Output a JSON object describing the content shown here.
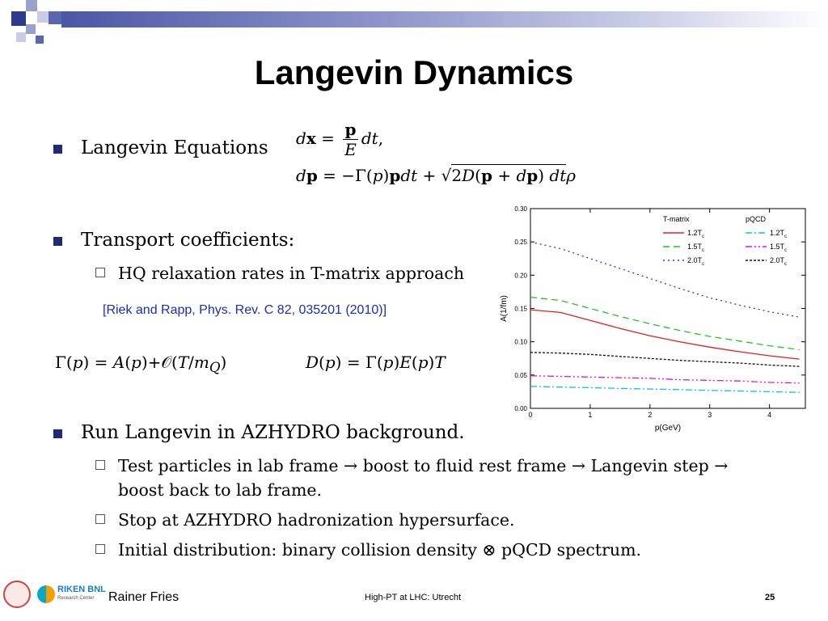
{
  "slide": {
    "title": "Langevin Dynamics",
    "bullets": [
      {
        "text": "Langevin Equations"
      },
      {
        "text": "Transport coefficients:"
      },
      {
        "text": "Run Langevin in AZHYDRO background."
      }
    ],
    "sub_items": [
      "HQ relaxation rates in T-matrix approach",
      "Test particles in lab frame → boost to fluid rest frame → Langevin step →",
      "boost back to lab frame.",
      "Stop at AZHYDRO hadronization hypersurface.",
      "Initial distribution: binary collision density ⊗ pQCD spectrum."
    ],
    "reference": "[Riek and Rapp, Phys. Rev. C 82, 035201 (2010)]",
    "footer": {
      "author": "Rainer Fries",
      "event": "High-PT at LHC: Utrecht",
      "page": "25",
      "logo_text": "RIKEN BNL",
      "logo_subtext": "Research Center"
    }
  },
  "chart_data": {
    "type": "line",
    "xlabel": "p(GeV)",
    "ylabel": "A(1/fm)",
    "xlim": [
      0,
      4.6
    ],
    "ylim": [
      0,
      0.3
    ],
    "xticks": [
      "0",
      "1",
      "2",
      "3",
      "4"
    ],
    "yticks": [
      "0.00",
      "0.05",
      "0.10",
      "0.15",
      "0.20",
      "0.25",
      "0.30"
    ],
    "legend_headers": [
      "T-matrix",
      "pQCD"
    ],
    "legend_placement": "top-right",
    "x": [
      0,
      0.5,
      1,
      1.5,
      2,
      2.5,
      3,
      3.5,
      4,
      4.5
    ],
    "series": [
      {
        "name": "1.2Tc",
        "group": "T-matrix",
        "color": "#e02020",
        "dash": "solid",
        "values": [
          0.148,
          0.144,
          0.132,
          0.12,
          0.109,
          0.1,
          0.092,
          0.085,
          0.079,
          0.074
        ]
      },
      {
        "name": "1.5Tc",
        "group": "T-matrix",
        "color": "#22c422",
        "dash": "8,5",
        "values": [
          0.167,
          0.162,
          0.15,
          0.138,
          0.127,
          0.117,
          0.108,
          0.101,
          0.094,
          0.088
        ]
      },
      {
        "name": "2.0Tc",
        "group": "T-matrix",
        "color": "#3333cc",
        "dash": "2,4",
        "values": [
          0.25,
          0.24,
          0.225,
          0.21,
          0.195,
          0.18,
          0.166,
          0.155,
          0.145,
          0.137
        ]
      },
      {
        "name": "1.2Tc",
        "group": "pQCD",
        "color": "#00cccc",
        "dash": "8,3,2,3",
        "values": [
          0.033,
          0.032,
          0.031,
          0.03,
          0.029,
          0.028,
          0.027,
          0.026,
          0.025,
          0.024
        ]
      },
      {
        "name": "1.5Tc",
        "group": "pQCD",
        "color": "#dd11dd",
        "dash": "8,3,2,3,2,3",
        "values": [
          0.049,
          0.048,
          0.047,
          0.046,
          0.045,
          0.043,
          0.042,
          0.041,
          0.039,
          0.038
        ]
      },
      {
        "name": "2.0Tc",
        "group": "pQCD",
        "color": "#111111",
        "dash": "3,2",
        "values": [
          0.084,
          0.083,
          0.081,
          0.078,
          0.075,
          0.072,
          0.07,
          0.068,
          0.065,
          0.063
        ]
      }
    ]
  }
}
